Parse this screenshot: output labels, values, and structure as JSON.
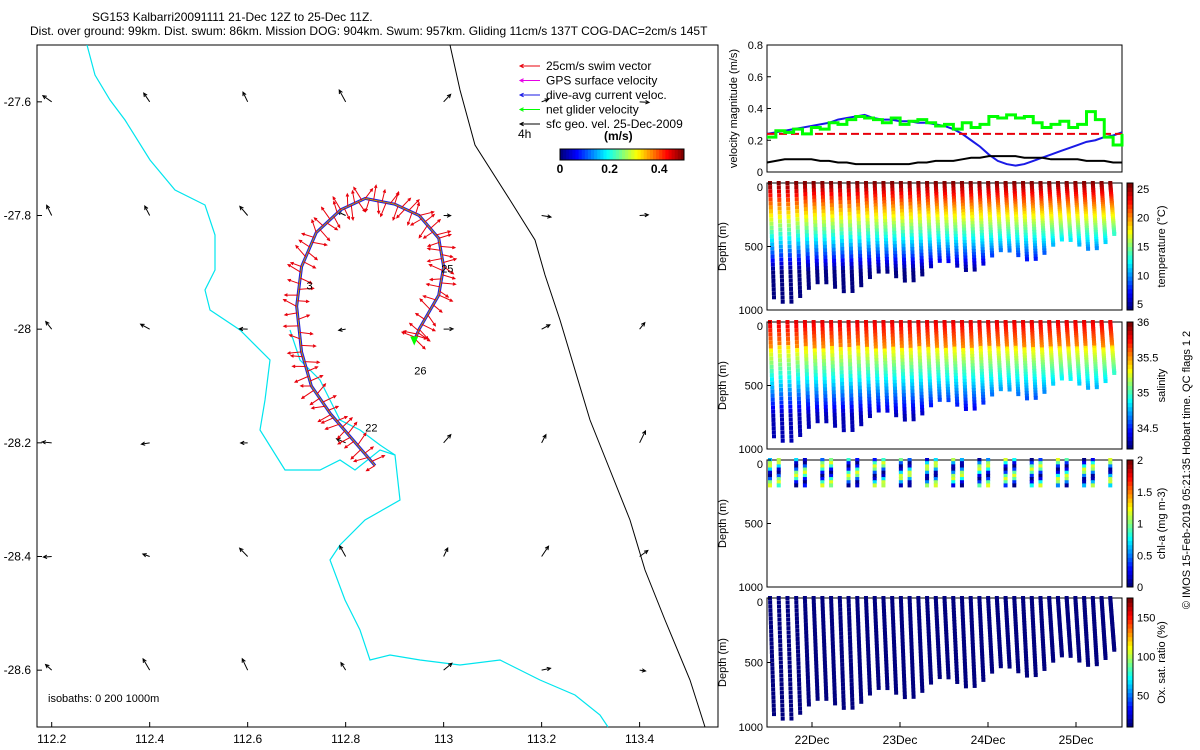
{
  "header": {
    "line1": "SG153 Kalbarri20091111 21-Dec 12Z to 25-Dec 11Z.",
    "line2": "Dist. over ground: 99km. Dist. swum: 86km. Mission DOG: 904km. Swum: 957km. Gliding 11cm/s 137T COG-DAC=2cm/s 145T"
  },
  "colors": {
    "cyan": "#00e5ee",
    "red": "#e8000b",
    "magenta": "#e600e6",
    "blue": "#1a1ae6",
    "green": "#00ff00",
    "black": "#000000"
  },
  "chart_data": [
    {
      "type": "scatter",
      "title": "map",
      "x_ticks": [
        "112.2",
        "112.4",
        "112.6",
        "112.8",
        "113",
        "113.2",
        "113.4"
      ],
      "y_ticks": [
        "-27.6",
        "-27.8",
        "-28",
        "-28.2",
        "-28.4",
        "-28.6"
      ],
      "xlim": [
        112.17,
        113.56
      ],
      "ylim": [
        -28.7,
        -27.5
      ],
      "legend": [
        {
          "label": "25cm/s swim vector",
          "color": "#e8000b"
        },
        {
          "label": "GPS surface velocity",
          "color": "#e600e6"
        },
        {
          "label": "dive-avg current veloc.",
          "color": "#1a1ae6"
        },
        {
          "label": "net glider velocity",
          "color": "#00ff00"
        },
        {
          "label": "sfc geo. vel. 25-Dec-2009",
          "color": "#000000"
        }
      ],
      "legend_note": "4h",
      "colorbar": {
        "label": "(m/s)",
        "ticks": [
          "0",
          "0.2",
          "0.4"
        ],
        "range": [
          0,
          0.5
        ]
      },
      "isobaths_label": "isobaths: 0   200   1000m",
      "day_labels": [
        {
          "text": "22",
          "lon": 112.84,
          "lat": -28.18
        },
        {
          "text": "3",
          "lon": 112.72,
          "lat": -27.93
        },
        {
          "text": "25",
          "lon": 112.995,
          "lat": -27.9
        },
        {
          "text": "26",
          "lon": 112.94,
          "lat": -28.08
        }
      ],
      "track": [
        [
          112.86,
          -28.24
        ],
        [
          112.81,
          -28.19
        ],
        [
          112.77,
          -28.15
        ],
        [
          112.73,
          -28.1
        ],
        [
          112.71,
          -28.04
        ],
        [
          112.7,
          -27.96
        ],
        [
          112.71,
          -27.89
        ],
        [
          112.74,
          -27.83
        ],
        [
          112.79,
          -27.79
        ],
        [
          112.84,
          -27.77
        ],
        [
          112.9,
          -27.78
        ],
        [
          112.95,
          -27.8
        ],
        [
          112.99,
          -27.84
        ],
        [
          113.0,
          -27.89
        ],
        [
          112.99,
          -27.94
        ],
        [
          112.95,
          -28.0
        ],
        [
          112.94,
          -28.02
        ]
      ]
    },
    {
      "type": "line",
      "ylabel": "velocity magnitude (m/s)",
      "ylim": [
        0,
        0.8
      ],
      "y_ticks": [
        "0",
        "0.2",
        "0.4",
        "0.6",
        "0.8"
      ],
      "x": [
        0,
        1,
        2,
        3,
        4,
        5,
        6,
        7,
        8,
        9,
        10,
        11,
        12,
        13,
        14,
        15,
        16,
        17,
        18,
        19,
        20,
        21,
        22,
        23,
        24,
        25,
        26,
        27,
        28,
        29,
        30,
        31,
        32,
        33,
        34,
        35,
        36,
        37,
        38,
        39,
        40
      ],
      "series": [
        {
          "color": "#1a1ae6",
          "values": [
            0.24,
            0.25,
            0.26,
            0.27,
            0.28,
            0.29,
            0.3,
            0.31,
            0.33,
            0.34,
            0.35,
            0.36,
            0.34,
            0.33,
            0.33,
            0.32,
            0.32,
            0.31,
            0.31,
            0.3,
            0.29,
            0.27,
            0.24,
            0.2,
            0.16,
            0.11,
            0.07,
            0.05,
            0.04,
            0.05,
            0.07,
            0.09,
            0.11,
            0.13,
            0.15,
            0.17,
            0.19,
            0.2,
            0.22,
            0.23,
            0.25
          ]
        },
        {
          "color": "#e8000b",
          "dashed": true,
          "values": [
            0.24,
            0.24,
            0.24,
            0.24,
            0.24,
            0.24,
            0.24,
            0.24,
            0.24,
            0.24,
            0.24,
            0.24,
            0.24,
            0.24,
            0.24,
            0.24,
            0.24,
            0.24,
            0.24,
            0.24,
            0.24,
            0.24,
            0.24,
            0.24,
            0.24,
            0.24,
            0.24,
            0.24,
            0.24,
            0.24,
            0.24,
            0.24,
            0.24,
            0.24,
            0.24,
            0.24,
            0.24,
            0.24,
            0.24,
            0.24,
            0.24
          ]
        },
        {
          "color": "#00ff00",
          "values": [
            0.22,
            0.26,
            0.25,
            0.27,
            0.24,
            0.28,
            0.27,
            0.31,
            0.3,
            0.33,
            0.35,
            0.34,
            0.33,
            0.31,
            0.34,
            0.3,
            0.32,
            0.33,
            0.31,
            0.29,
            0.3,
            0.27,
            0.31,
            0.28,
            0.3,
            0.35,
            0.34,
            0.36,
            0.34,
            0.35,
            0.31,
            0.28,
            0.3,
            0.32,
            0.28,
            0.3,
            0.38,
            0.33,
            0.22,
            0.17,
            0.24
          ]
        },
        {
          "color": "#000000",
          "values": [
            0.06,
            0.07,
            0.08,
            0.08,
            0.08,
            0.08,
            0.07,
            0.07,
            0.06,
            0.06,
            0.05,
            0.05,
            0.05,
            0.05,
            0.05,
            0.05,
            0.05,
            0.06,
            0.06,
            0.07,
            0.07,
            0.07,
            0.08,
            0.09,
            0.09,
            0.1,
            0.1,
            0.1,
            0.1,
            0.09,
            0.09,
            0.09,
            0.08,
            0.08,
            0.08,
            0.08,
            0.07,
            0.07,
            0.07,
            0.06,
            0.06
          ]
        }
      ]
    },
    {
      "type": "scatter",
      "variable": "temperature",
      "ylabel": "Depth (m)",
      "cbar_label": "temperature (°C)",
      "cbar_ticks": [
        "5",
        "10",
        "15",
        "20",
        "25"
      ],
      "crange": [
        4,
        26
      ],
      "y_ticks": [
        "0",
        "500",
        "1000"
      ]
    },
    {
      "type": "scatter",
      "variable": "salinity",
      "ylabel": "Depth (m)",
      "cbar_label": "salinity",
      "cbar_ticks": [
        "34.5",
        "35",
        "35.5",
        "36"
      ],
      "crange": [
        34.2,
        36
      ],
      "y_ticks": [
        "0",
        "500",
        "1000"
      ]
    },
    {
      "type": "scatter",
      "variable": "chl-a",
      "ylabel": "Depth (m)",
      "cbar_label": "chl-a (mg m-3)",
      "cbar_ticks": [
        "0",
        "0.5",
        "1",
        "1.5",
        "2"
      ],
      "crange": [
        0,
        2
      ],
      "y_ticks": [
        "0",
        "500",
        "1000"
      ]
    },
    {
      "type": "scatter",
      "variable": "oxygen",
      "ylabel": "Depth (m)",
      "cbar_label": "Ox. sat. ratio (%)",
      "cbar_ticks": [
        "50",
        "100",
        "150"
      ],
      "crange": [
        10,
        175
      ],
      "y_ticks": [
        "0",
        "500",
        "1000"
      ],
      "x_ticks": [
        "22Dec",
        "23Dec",
        "24Dec",
        "25Dec"
      ]
    }
  ],
  "footer_note": "© IMOS 15-Feb-2019 05:21:35 Hobart time. QC flags 1  2"
}
